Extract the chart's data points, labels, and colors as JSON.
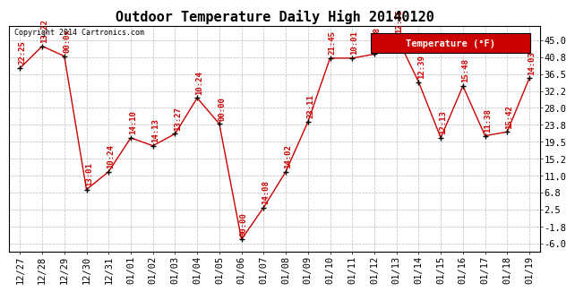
{
  "title": "Outdoor Temperature Daily High 20140120",
  "copyright_text": "Copyright 2014 Cartronics.com",
  "legend_label": "Temperature (°F)",
  "x_labels": [
    "12/27",
    "12/28",
    "12/29",
    "12/30",
    "12/31",
    "01/01",
    "01/02",
    "01/03",
    "01/04",
    "01/05",
    "01/06",
    "01/07",
    "01/08",
    "01/09",
    "01/10",
    "01/11",
    "01/12",
    "01/13",
    "01/14",
    "01/15",
    "01/16",
    "01/17",
    "01/18",
    "01/19"
  ],
  "temperatures": [
    38.0,
    43.5,
    41.0,
    7.5,
    12.0,
    20.5,
    18.5,
    21.5,
    30.5,
    24.0,
    -5.0,
    3.0,
    12.0,
    24.5,
    40.5,
    40.5,
    41.5,
    46.0,
    34.5,
    20.5,
    33.5,
    21.0,
    22.0,
    35.5
  ],
  "time_labels": [
    "22:25",
    "13:22",
    "00:0x",
    "13:01",
    "10:24",
    "14:10",
    "14:13",
    "13:27",
    "10:24",
    "00:00",
    "00:00",
    "14:08",
    "14:02",
    "23:11",
    "21:45",
    "10:01",
    "17:58",
    "12:35",
    "12:39",
    "12:13",
    "15:48",
    "11:38",
    "15:42",
    "14:03"
  ],
  "yticks": [
    45.0,
    40.8,
    36.5,
    32.2,
    28.0,
    23.8,
    19.5,
    15.2,
    11.0,
    6.8,
    2.5,
    -1.8,
    -6.0
  ],
  "ylim": [
    -8.0,
    48.5
  ],
  "line_color": "#cc0000",
  "marker_color": "#000000",
  "grid_color": "#bbbbbb",
  "bg_color": "#ffffff",
  "title_fontsize": 11,
  "annot_fontsize": 6.5,
  "tick_fontsize": 7.5,
  "legend_bg": "#cc0000",
  "legend_text_color": "#ffffff",
  "legend_fontsize": 7.5,
  "copyright_fontsize": 6.0
}
